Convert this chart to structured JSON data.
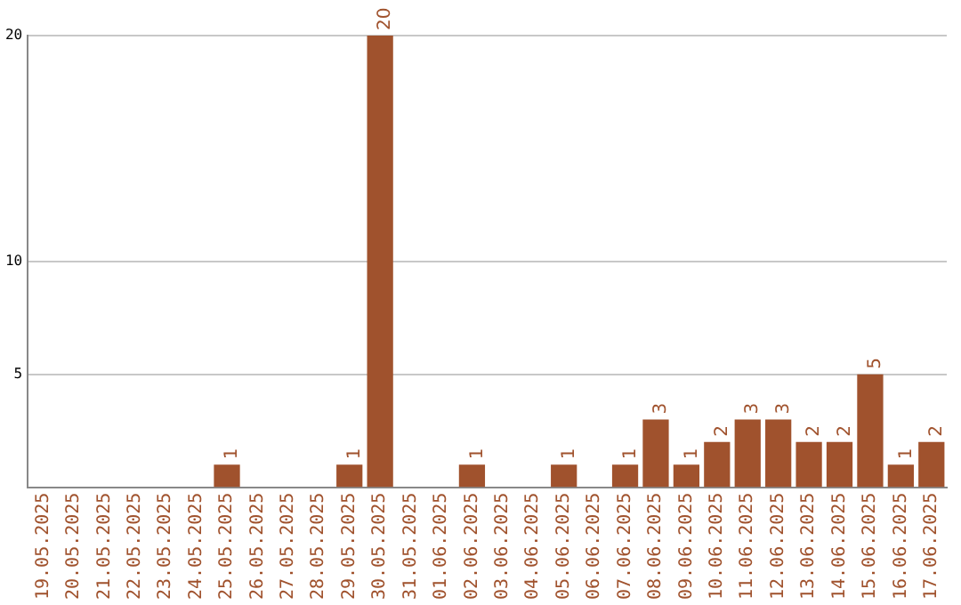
{
  "chart_data": {
    "type": "bar",
    "categories": [
      "19.05.2025",
      "20.05.2025",
      "21.05.2025",
      "22.05.2025",
      "23.05.2025",
      "24.05.2025",
      "25.05.2025",
      "26.05.2025",
      "27.05.2025",
      "28.05.2025",
      "29.05.2025",
      "30.05.2025",
      "31.05.2025",
      "01.06.2025",
      "02.06.2025",
      "03.06.2025",
      "04.06.2025",
      "05.06.2025",
      "06.06.2025",
      "07.06.2025",
      "08.06.2025",
      "09.06.2025",
      "10.06.2025",
      "11.06.2025",
      "12.06.2025",
      "13.06.2025",
      "14.06.2025",
      "15.06.2025",
      "16.06.2025",
      "17.06.2025"
    ],
    "values": [
      0,
      0,
      0,
      0,
      0,
      0,
      1,
      0,
      0,
      0,
      1,
      20,
      0,
      0,
      1,
      0,
      0,
      1,
      0,
      1,
      3,
      1,
      2,
      3,
      3,
      2,
      2,
      5,
      1,
      2
    ],
    "value_labels": [
      null,
      null,
      null,
      null,
      null,
      null,
      "1",
      null,
      null,
      null,
      "1",
      "20",
      null,
      null,
      "1",
      null,
      null,
      "1",
      null,
      "1",
      "3",
      "1",
      "2",
      "3",
      "3",
      "2",
      "2",
      "5",
      "1",
      "2"
    ],
    "color": "#a0522d",
    "ylim": [
      0,
      20
    ],
    "yticks": [
      5,
      10,
      20
    ],
    "grid": "y"
  }
}
